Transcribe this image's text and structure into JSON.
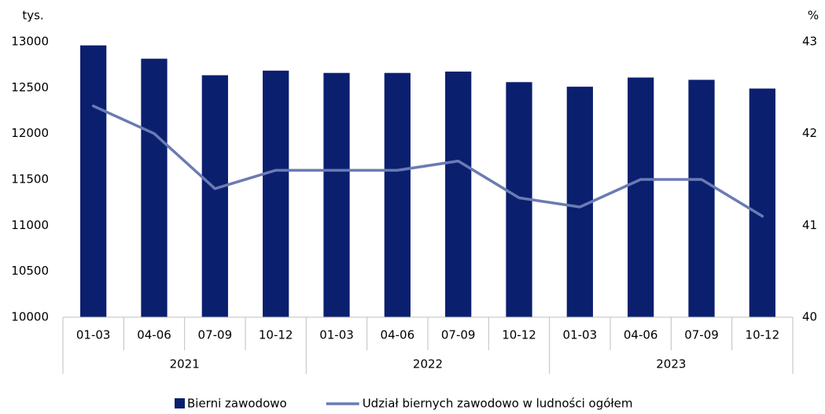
{
  "chart_data": {
    "type": "bar_line",
    "y_axis_label": "tys.",
    "y2_axis_label": "%",
    "categories": [
      "01-03",
      "04-06",
      "07-09",
      "10-12",
      "01-03",
      "04-06",
      "07-09",
      "10-12",
      "01-03",
      "04-06",
      "07-09",
      "10-12"
    ],
    "groups": [
      "2021",
      "2022",
      "2023"
    ],
    "series": [
      {
        "name": "Bierni zawodowo",
        "type": "bar",
        "color": "#0b1f6f",
        "values": [
          12960,
          12815,
          12635,
          12685,
          12660,
          12660,
          12675,
          12560,
          12510,
          12610,
          12585,
          12490
        ]
      },
      {
        "name": "Udział biernych zawodowo w ludności ogółem",
        "type": "line",
        "color": "#6a7bb4",
        "axis": "y2",
        "values": [
          42.3,
          42.0,
          41.4,
          41.6,
          41.6,
          41.6,
          41.7,
          41.3,
          41.2,
          41.5,
          41.5,
          41.1
        ]
      }
    ],
    "ylim": [
      10000,
      13000
    ],
    "yticks": [
      10000,
      10500,
      11000,
      11500,
      12000,
      12500,
      13000
    ],
    "y2lim": [
      40,
      43
    ],
    "y2ticks": [
      40,
      41,
      42,
      43
    ],
    "grid": false,
    "legend": "bottom"
  }
}
